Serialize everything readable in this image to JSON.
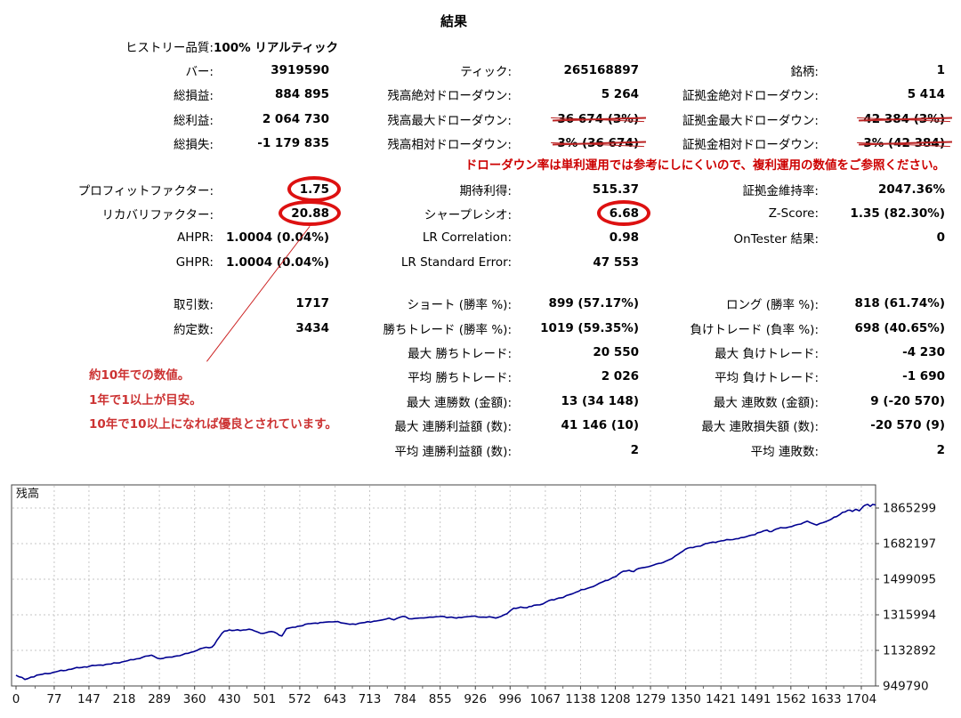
{
  "title": "結果",
  "note": "ドローダウン率は単利運用では参考にしにくいので、複利運用の数値をご参照ください。",
  "annotation": {
    "lines": [
      "約10年での数値。",
      "1年で1以上が目安。",
      "10年で10以上になれば優良とされています。"
    ]
  },
  "colors": {
    "accent_red": "#dd1111",
    "note_red": "#cc0000",
    "annotation_red": "#cc3333",
    "strike_red": "#bb2222",
    "curve_blue": "#000090"
  },
  "rows": [
    [
      {
        "l": "ヒストリー品質:",
        "v": "100% リアルティック"
      },
      null,
      null
    ],
    [
      {
        "l": "バー:",
        "v": "3919590"
      },
      {
        "l": "ティック:",
        "v": "265168897"
      },
      {
        "l": "銘柄:",
        "v": "1"
      }
    ],
    [
      {
        "l": "総損益:",
        "v": "884 895"
      },
      {
        "l": "残高絶対ドローダウン:",
        "v": "5 264"
      },
      {
        "l": "証拠金絶対ドローダウン:",
        "v": "5 414"
      }
    ],
    [
      {
        "l": "総利益:",
        "v": "2 064 730"
      },
      {
        "l": "残高最大ドローダウン:",
        "v": "36 674 (3%)",
        "struck": true
      },
      {
        "l": "証拠金最大ドローダウン:",
        "v": "42 384 (3%)",
        "struck": true
      }
    ],
    [
      {
        "l": "総損失:",
        "v": "-1 179 835"
      },
      {
        "l": "残高相対ドローダウン:",
        "v": "3% (36 674)",
        "struck": true
      },
      {
        "l": "証拠金相対ドローダウン:",
        "v": "3% (42 384)",
        "struck": true
      }
    ],
    [
      {
        "l": "プロフィットファクター:",
        "v": "1.75",
        "circled": true
      },
      {
        "l": "期待利得:",
        "v": "515.37"
      },
      {
        "l": "証拠金維持率:",
        "v": "2047.36%"
      }
    ],
    [
      {
        "l": "リカバリファクター:",
        "v": "20.88",
        "circled": true
      },
      {
        "l": "シャープレシオ:",
        "v": "6.68",
        "circled": true
      },
      {
        "l": "Z-Score:",
        "v": "1.35 (82.30%)"
      }
    ],
    [
      {
        "l": "AHPR:",
        "v": "1.0004 (0.04%)"
      },
      {
        "l": "LR Correlation:",
        "v": "0.98"
      },
      {
        "l": "OnTester 結果:",
        "v": "0"
      }
    ],
    [
      {
        "l": "GHPR:",
        "v": "1.0004 (0.04%)"
      },
      {
        "l": "LR Standard Error:",
        "v": "47 553"
      },
      null
    ],
    [
      {
        "l": "取引数:",
        "v": "1717"
      },
      {
        "l": "ショート (勝率 %):",
        "v": "899 (57.17%)"
      },
      {
        "l": "ロング (勝率 %):",
        "v": "818 (61.74%)"
      }
    ],
    [
      {
        "l": "約定数:",
        "v": "3434"
      },
      {
        "l": "勝ちトレード (勝率 %):",
        "v": "1019 (59.35%)"
      },
      {
        "l": "負けトレード (負率 %):",
        "v": "698 (40.65%)"
      }
    ],
    [
      null,
      {
        "l": "最大 勝ちトレード:",
        "v": "20 550"
      },
      {
        "l": "最大 負けトレード:",
        "v": "-4 230"
      }
    ],
    [
      null,
      {
        "l": "平均 勝ちトレード:",
        "v": "2 026"
      },
      {
        "l": "平均 負けトレード:",
        "v": "-1 690"
      }
    ],
    [
      null,
      {
        "l": "最大 連勝数 (金額):",
        "v": "13 (34 148)"
      },
      {
        "l": "最大 連敗数 (金額):",
        "v": "9 (-20 570)"
      }
    ],
    [
      null,
      {
        "l": "最大 連勝利益額 (数):",
        "v": "41 146 (10)"
      },
      {
        "l": "最大 連敗損失額 (数):",
        "v": "-20 570 (9)"
      }
    ],
    [
      null,
      {
        "l": "平均 連勝利益額 (数):",
        "v": "2"
      },
      {
        "l": "平均 連敗数:",
        "v": "2"
      }
    ]
  ],
  "chart_data": {
    "type": "line",
    "title": "残高",
    "xlabel": "",
    "ylabel": "",
    "x_ticks": [
      0,
      77,
      147,
      218,
      289,
      360,
      430,
      501,
      572,
      643,
      713,
      784,
      855,
      926,
      996,
      1067,
      1138,
      1208,
      1279,
      1350,
      1421,
      1491,
      1562,
      1633,
      1704
    ],
    "y_ticks": [
      949790,
      1132892,
      1315994,
      1499095,
      1682197,
      1865299
    ],
    "x_range": [
      0,
      1733
    ],
    "y_range": [
      949790,
      1984000
    ],
    "grid": "dashed",
    "legend": "none",
    "y_axis_side": "right",
    "line_color": "#000090",
    "series": [
      {
        "name": "残高",
        "points": [
          [
            0,
            1005000
          ],
          [
            18,
            983000
          ],
          [
            30,
            995000
          ],
          [
            48,
            1008000
          ],
          [
            75,
            1020000
          ],
          [
            106,
            1035000
          ],
          [
            138,
            1048000
          ],
          [
            165,
            1057000
          ],
          [
            192,
            1063000
          ],
          [
            219,
            1076000
          ],
          [
            237,
            1085000
          ],
          [
            255,
            1097000
          ],
          [
            273,
            1108000
          ],
          [
            291,
            1090000
          ],
          [
            309,
            1098000
          ],
          [
            335,
            1110000
          ],
          [
            359,
            1127000
          ],
          [
            377,
            1145000
          ],
          [
            395,
            1150000
          ],
          [
            400,
            1163000
          ],
          [
            405,
            1185000
          ],
          [
            411,
            1205000
          ],
          [
            420,
            1232000
          ],
          [
            430,
            1238000
          ],
          [
            452,
            1235000
          ],
          [
            470,
            1242000
          ],
          [
            493,
            1221000
          ],
          [
            515,
            1230000
          ],
          [
            536,
            1207000
          ],
          [
            545,
            1244000
          ],
          [
            563,
            1252000
          ],
          [
            583,
            1267000
          ],
          [
            599,
            1272000
          ],
          [
            613,
            1276000
          ],
          [
            631,
            1280000
          ],
          [
            649,
            1281000
          ],
          [
            662,
            1272000
          ],
          [
            673,
            1267000
          ],
          [
            691,
            1272000
          ],
          [
            703,
            1276000
          ],
          [
            721,
            1283000
          ],
          [
            739,
            1290000
          ],
          [
            752,
            1299000
          ],
          [
            762,
            1290000
          ],
          [
            780,
            1308000
          ],
          [
            798,
            1295000
          ],
          [
            816,
            1300000
          ],
          [
            834,
            1304000
          ],
          [
            847,
            1306000
          ],
          [
            859,
            1308000
          ],
          [
            873,
            1303000
          ],
          [
            888,
            1299000
          ],
          [
            902,
            1304000
          ],
          [
            918,
            1308000
          ],
          [
            931,
            1305000
          ],
          [
            942,
            1304000
          ],
          [
            954,
            1306000
          ],
          [
            967,
            1299000
          ],
          [
            978,
            1308000
          ],
          [
            990,
            1322000
          ],
          [
            1003,
            1350000
          ],
          [
            1017,
            1356000
          ],
          [
            1030,
            1352000
          ],
          [
            1044,
            1365000
          ],
          [
            1062,
            1372000
          ],
          [
            1075,
            1390000
          ],
          [
            1089,
            1398000
          ],
          [
            1103,
            1405000
          ],
          [
            1116,
            1420000
          ],
          [
            1134,
            1437000
          ],
          [
            1152,
            1452000
          ],
          [
            1170,
            1470000
          ],
          [
            1188,
            1492000
          ],
          [
            1209,
            1512000
          ],
          [
            1224,
            1540000
          ],
          [
            1236,
            1545000
          ],
          [
            1245,
            1538000
          ],
          [
            1256,
            1555000
          ],
          [
            1268,
            1560000
          ],
          [
            1281,
            1568000
          ],
          [
            1295,
            1580000
          ],
          [
            1310,
            1592000
          ],
          [
            1322,
            1605000
          ],
          [
            1335,
            1628000
          ],
          [
            1349,
            1653000
          ],
          [
            1385,
            1676000
          ],
          [
            1399,
            1687000
          ],
          [
            1421,
            1696000
          ],
          [
            1439,
            1702000
          ],
          [
            1451,
            1707000
          ],
          [
            1466,
            1714000
          ],
          [
            1483,
            1726000
          ],
          [
            1501,
            1741000
          ],
          [
            1514,
            1752000
          ],
          [
            1523,
            1744000
          ],
          [
            1532,
            1757000
          ],
          [
            1546,
            1763000
          ],
          [
            1564,
            1770000
          ],
          [
            1582,
            1783000
          ],
          [
            1595,
            1798000
          ],
          [
            1605,
            1786000
          ],
          [
            1614,
            1778000
          ],
          [
            1627,
            1790000
          ],
          [
            1639,
            1802000
          ],
          [
            1654,
            1821000
          ],
          [
            1666,
            1843000
          ],
          [
            1677,
            1854000
          ],
          [
            1686,
            1848000
          ],
          [
            1693,
            1859000
          ],
          [
            1700,
            1851000
          ],
          [
            1708,
            1874000
          ],
          [
            1717,
            1884000
          ],
          [
            1722,
            1874000
          ],
          [
            1727,
            1884000
          ],
          [
            1733,
            1881000
          ]
        ]
      }
    ]
  }
}
